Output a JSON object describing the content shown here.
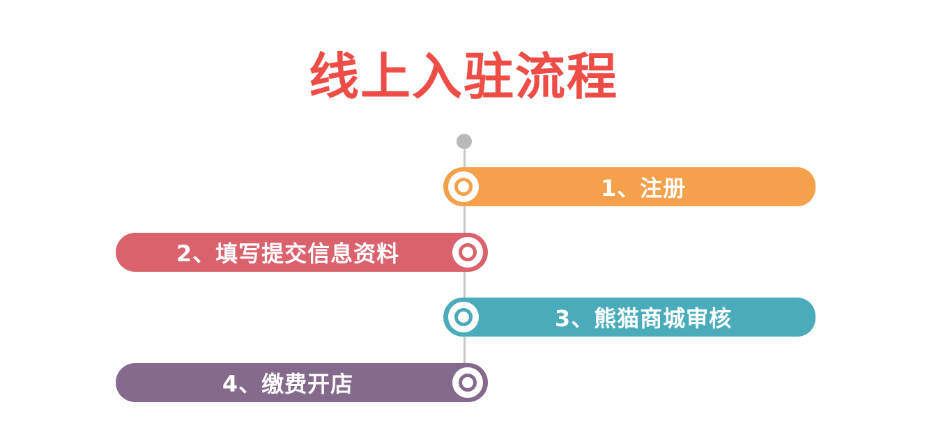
{
  "title": "线上入驻流程",
  "steps": [
    {
      "label": "1、注册",
      "color": "#f5a04a",
      "side": "right"
    },
    {
      "label": "2、填写提交信息资料",
      "color": "#d9626c",
      "side": "left"
    },
    {
      "label": "3、熊猫商城审核",
      "color": "#4aacba",
      "side": "right"
    },
    {
      "label": "4、缴费开店",
      "color": "#846a8d",
      "side": "left"
    }
  ]
}
